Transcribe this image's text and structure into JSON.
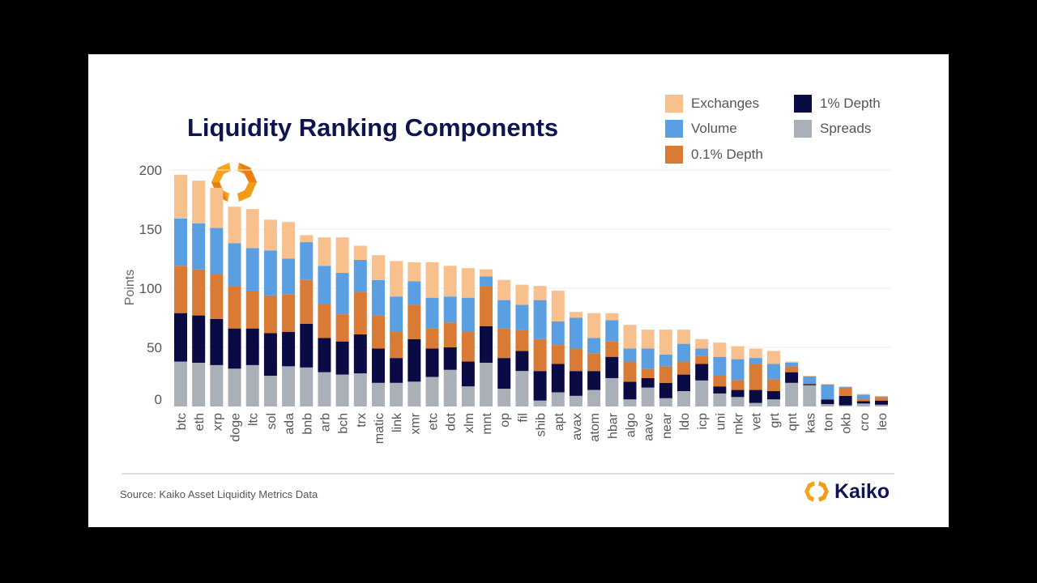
{
  "chart_data": {
    "type": "bar",
    "stacked": true,
    "title": "Liquidity Ranking Components",
    "xlabel": "",
    "ylabel": "Points",
    "ylim": [
      0,
      200
    ],
    "yticks": [
      0,
      50,
      100,
      150,
      200
    ],
    "grid": true,
    "legend_position": "top-right",
    "categories": [
      "btc",
      "eth",
      "xrp",
      "doge",
      "ltc",
      "sol",
      "ada",
      "bnb",
      "arb",
      "bch",
      "trx",
      "matic",
      "link",
      "xmr",
      "etc",
      "dot",
      "xlm",
      "mnt",
      "op",
      "fil",
      "shib",
      "apt",
      "avax",
      "atom",
      "hbar",
      "algo",
      "aave",
      "near",
      "ldo",
      "icp",
      "uni",
      "mkr",
      "vet",
      "grt",
      "qnt",
      "kas",
      "ton",
      "okb",
      "cro",
      "leo"
    ],
    "series": [
      {
        "name": "Spreads",
        "color": "#a9b0b8",
        "values": [
          38,
          37,
          35,
          32,
          35,
          26,
          34,
          33,
          29,
          27,
          28,
          20,
          20,
          21,
          25,
          31,
          17,
          37,
          15,
          30,
          5,
          12,
          9,
          14,
          24,
          6,
          16,
          7,
          13,
          22,
          11,
          8,
          3,
          6,
          20,
          18,
          2,
          1,
          2.5,
          1.5
        ]
      },
      {
        "name": "1% Depth",
        "color": "#0a0a45",
        "values": [
          41,
          40,
          39,
          34,
          31,
          36,
          29,
          37,
          29,
          28,
          33,
          29,
          21,
          36,
          24,
          19,
          21,
          31,
          26,
          17,
          25,
          24,
          21,
          16,
          18,
          15,
          8,
          13,
          14,
          14,
          6,
          6,
          11,
          7,
          9,
          1,
          4,
          8,
          2,
          3.5
        ]
      },
      {
        "name": "0.1% Depth",
        "color": "#d97b35",
        "values": [
          40,
          39,
          38,
          36,
          32,
          32,
          32,
          37,
          29,
          23,
          36,
          28,
          22,
          29,
          17,
          21,
          25,
          34,
          25,
          18,
          27,
          16,
          19,
          15,
          13,
          17,
          8,
          14,
          11,
          7,
          9,
          8,
          22,
          10,
          5,
          0.5,
          0,
          7,
          2,
          3
        ]
      },
      {
        "name": "Volume",
        "color": "#5b9fe3",
        "values": [
          40,
          39,
          39,
          36,
          36,
          38,
          30,
          32,
          32,
          35,
          27,
          30,
          30,
          20,
          26,
          22,
          29,
          8,
          24,
          21,
          33,
          20,
          26,
          13,
          18,
          11,
          17,
          10,
          15,
          6,
          16,
          18,
          5,
          13,
          3,
          6,
          12.5,
          0.5,
          3.5,
          0.5
        ]
      },
      {
        "name": "Exchanges",
        "color": "#f7c08d",
        "values": [
          37,
          36,
          34,
          31,
          33,
          26,
          31,
          6,
          24,
          30,
          12,
          21,
          30,
          16,
          30,
          26,
          25,
          6,
          17,
          17,
          12,
          26,
          5,
          21,
          6,
          20,
          16,
          21,
          12,
          8,
          12,
          11,
          8,
          11,
          1,
          0.5,
          0.5,
          0.5,
          0.5,
          0.3
        ]
      }
    ]
  },
  "legend": [
    {
      "label": "Exchanges",
      "color": "#f7c08d"
    },
    {
      "label": "1% Depth",
      "color": "#0a0a45"
    },
    {
      "label": "Volume",
      "color": "#5b9fe3"
    },
    {
      "label": "Spreads",
      "color": "#a9b0b8"
    },
    {
      "label": "0.1% Depth",
      "color": "#d97b35"
    }
  ],
  "source": "Source: Kaiko Asset Liquidity Metrics Data",
  "brand": "Kaiko"
}
